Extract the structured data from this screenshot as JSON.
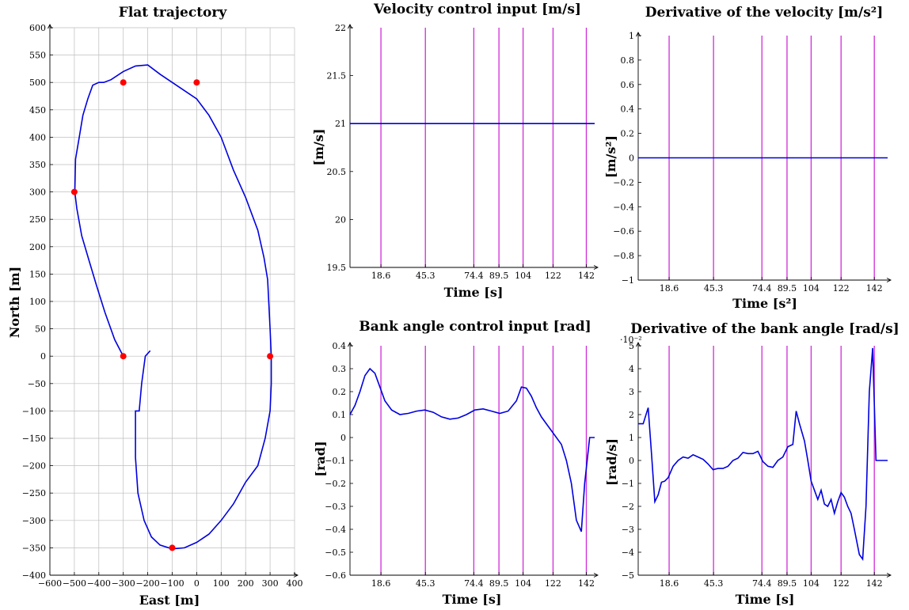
{
  "colors": {
    "curve": "#0000e0",
    "vlines": "#d02bd8",
    "markers": "#ff0000",
    "grid": "#bdbdbd"
  },
  "chart_data": [
    {
      "id": "traj",
      "type": "line",
      "title": "Flat trajectory",
      "xlabel": "East [m]",
      "ylabel": "North [m]",
      "xlim": [
        -600,
        400
      ],
      "ylim": [
        -400,
        600
      ],
      "grid": true,
      "xticks": [
        -600,
        -500,
        -400,
        -300,
        -200,
        -100,
        0,
        100,
        200,
        300,
        400
      ],
      "xtick_labels": [
        "−600",
        "−500",
        "−400",
        "−300",
        "−200",
        "−100",
        "0",
        "100",
        "200",
        "300",
        "400"
      ],
      "yticks": [
        -400,
        -350,
        -300,
        -250,
        -200,
        -150,
        -100,
        -50,
        0,
        50,
        100,
        150,
        200,
        250,
        300,
        350,
        400,
        450,
        500,
        550,
        600
      ],
      "ytick_labels": [
        "−400",
        "−350",
        "−300",
        "−250",
        "−200",
        "−150",
        "−100",
        "−50",
        "0",
        "50",
        "100",
        "150",
        "200",
        "250",
        "300",
        "350",
        "400",
        "450",
        "500",
        "550",
        "600"
      ],
      "series": [
        {
          "x": [
            -300,
            -335,
            -375,
            -410,
            -440,
            -470,
            -490,
            -498,
            -495,
            -480,
            -465,
            -445,
            -425,
            -400,
            -380,
            -350,
            -300,
            -250,
            -200,
            -150,
            -100,
            0,
            50,
            100,
            150,
            200,
            250,
            275,
            290,
            300,
            305,
            305,
            300,
            280,
            250,
            200,
            150,
            100,
            50,
            0,
            -50,
            -100,
            -150,
            -185,
            -215,
            -240,
            -250,
            -250,
            -235,
            -225,
            -210,
            -190
          ],
          "y": [
            0,
            30,
            80,
            130,
            175,
            220,
            270,
            300,
            360,
            400,
            440,
            470,
            495,
            500,
            500,
            505,
            520,
            530,
            532,
            515,
            500,
            470,
            440,
            400,
            340,
            290,
            230,
            180,
            140,
            50,
            0,
            -50,
            -100,
            -150,
            -200,
            -230,
            -270,
            -300,
            -325,
            -340,
            -350,
            -352,
            -345,
            -330,
            -300,
            -250,
            -185,
            -100,
            -100,
            -50,
            0,
            10
          ]
        }
      ],
      "markers": {
        "x": [
          -300,
          -500,
          -300,
          0,
          300,
          -100
        ],
        "y": [
          0,
          300,
          500,
          500,
          0,
          -350
        ]
      }
    },
    {
      "id": "vel",
      "type": "line",
      "title": "Velocity control input [m/s]",
      "xlabel": "Time [s]",
      "ylabel": "[m/s]",
      "xlim": [
        0,
        147
      ],
      "ylim": [
        19.5,
        22
      ],
      "xticks": [
        18.6,
        45.3,
        74.4,
        89.5,
        104,
        122,
        142
      ],
      "xtick_labels": [
        "18.6",
        "45.3",
        "74.4",
        "89.5",
        "104",
        "122",
        "142"
      ],
      "yticks": [
        19.5,
        20,
        20.5,
        21,
        21.5,
        22
      ],
      "ytick_labels": [
        "19.5",
        "20",
        "20.5",
        "21",
        "21.5",
        "22"
      ],
      "vlines": [
        18.6,
        45.3,
        74.4,
        89.5,
        104,
        122,
        142
      ],
      "series": [
        {
          "x": [
            0,
            147
          ],
          "y": [
            21,
            21
          ]
        }
      ]
    },
    {
      "id": "dvel",
      "type": "line",
      "title": "Derivative of the velocity [m/s²]",
      "xlabel": "Time [s²]",
      "ylabel": "[m/s²]",
      "xlim": [
        0,
        150
      ],
      "ylim": [
        -1,
        1
      ],
      "xticks": [
        18.6,
        45.3,
        74.4,
        89.5,
        104,
        122,
        142
      ],
      "xtick_labels": [
        "18.6",
        "45.3",
        "74.4",
        "89.5",
        "104",
        "122",
        "142"
      ],
      "yticks": [
        -1,
        -0.8,
        -0.6,
        -0.4,
        -0.2,
        0,
        0.2,
        0.4,
        0.6,
        0.8,
        1
      ],
      "ytick_labels": [
        "−1",
        "−0.8",
        "−0.6",
        "−0.4",
        "−0.2",
        "0",
        "0.2",
        "0.4",
        "0.6",
        "0.8",
        "1"
      ],
      "vlines": [
        18.6,
        45.3,
        74.4,
        89.5,
        104,
        122,
        142
      ],
      "series": [
        {
          "x": [
            0,
            150
          ],
          "y": [
            0,
            0
          ]
        }
      ]
    },
    {
      "id": "bank",
      "type": "line",
      "title": "Bank angle control input [rad]",
      "xlabel": "Time [s]",
      "ylabel": "[rad]",
      "xlim": [
        0,
        147
      ],
      "ylim": [
        -0.6,
        0.4
      ],
      "xticks": [
        18.6,
        45.3,
        74.4,
        89.5,
        104,
        122,
        142
      ],
      "xtick_labels": [
        "18.6",
        "45.3",
        "74.4",
        "89.5",
        "104",
        "122",
        "142"
      ],
      "yticks": [
        -0.6,
        -0.5,
        -0.4,
        -0.3,
        -0.2,
        -0.1,
        0,
        0.1,
        0.2,
        0.3,
        0.4
      ],
      "ytick_labels": [
        "−0.6",
        "−0.5",
        "−0.4",
        "−0.3",
        "−0.2",
        "−0.1",
        "0",
        "0.1",
        "0.2",
        "0.3",
        "0.4"
      ],
      "vlines": [
        18.6,
        45.3,
        74.4,
        89.5,
        104,
        122,
        142
      ],
      "series": [
        {
          "x": [
            0,
            3,
            6,
            9,
            12,
            15,
            18,
            21,
            25,
            30,
            35,
            40,
            45,
            50,
            55,
            60,
            65,
            70,
            75,
            80,
            85,
            90,
            95,
            100,
            103,
            106,
            109,
            112,
            115,
            119,
            123,
            127,
            130,
            133,
            136,
            139,
            141,
            144,
            147
          ],
          "y": [
            0.1,
            0.14,
            0.2,
            0.27,
            0.3,
            0.28,
            0.22,
            0.16,
            0.12,
            0.1,
            0.105,
            0.115,
            0.12,
            0.11,
            0.09,
            0.08,
            0.085,
            0.1,
            0.12,
            0.125,
            0.115,
            0.105,
            0.115,
            0.16,
            0.22,
            0.215,
            0.18,
            0.13,
            0.09,
            0.05,
            0.01,
            -0.03,
            -0.1,
            -0.2,
            -0.36,
            -0.41,
            -0.2,
            0.0,
            0.0
          ]
        }
      ]
    },
    {
      "id": "dbank",
      "type": "line",
      "title": "Derivative of the bank angle [rad/s]",
      "xlabel": "Time [s]",
      "ylabel": "[rad/s]",
      "scale_label": "·10⁻²",
      "xlim": [
        0,
        150
      ],
      "ylim": [
        -5,
        5
      ],
      "xticks": [
        18.6,
        45.3,
        74.4,
        89.5,
        104,
        122,
        142
      ],
      "xtick_labels": [
        "18.6",
        "45.3",
        "74.4",
        "89.5",
        "104",
        "122",
        "142"
      ],
      "yticks": [
        -5,
        -4,
        -3,
        -2,
        -1,
        0,
        1,
        2,
        3,
        4,
        5
      ],
      "ytick_labels": [
        "−5",
        "−4",
        "−3",
        "−2",
        "−1",
        "0",
        "1",
        "2",
        "3",
        "4",
        "5"
      ],
      "vlines": [
        18.6,
        45.3,
        74.4,
        89.5,
        104,
        122,
        142
      ],
      "series": [
        {
          "x": [
            0,
            3,
            6,
            8,
            10,
            12,
            14,
            16,
            18,
            21,
            24,
            27,
            30,
            33,
            36,
            39,
            42,
            45,
            48,
            51,
            54,
            57,
            60,
            63,
            66,
            69,
            72,
            75,
            78,
            81,
            84,
            87,
            90,
            93,
            95,
            97,
            100,
            102,
            104,
            106,
            108,
            110,
            112,
            114,
            116,
            118,
            120,
            122,
            124,
            126,
            128,
            130,
            133,
            135,
            137,
            139,
            141,
            143,
            146,
            150
          ],
          "y": [
            1.6,
            1.6,
            2.3,
            0.3,
            -1.8,
            -1.5,
            -0.95,
            -0.9,
            -0.75,
            -0.25,
            0.0,
            0.15,
            0.1,
            0.25,
            0.15,
            0.05,
            -0.15,
            -0.4,
            -0.35,
            -0.35,
            -0.25,
            0.0,
            0.1,
            0.35,
            0.3,
            0.3,
            0.4,
            -0.05,
            -0.25,
            -0.3,
            0.0,
            0.15,
            0.6,
            0.7,
            2.15,
            1.6,
            0.85,
            0.0,
            -0.9,
            -1.3,
            -1.7,
            -1.3,
            -1.9,
            -2.0,
            -1.7,
            -2.3,
            -1.8,
            -1.4,
            -1.6,
            -2.0,
            -2.3,
            -3.0,
            -4.1,
            -4.3,
            -2.0,
            3.0,
            4.9,
            0.0,
            0.0,
            0.0
          ]
        }
      ]
    }
  ]
}
